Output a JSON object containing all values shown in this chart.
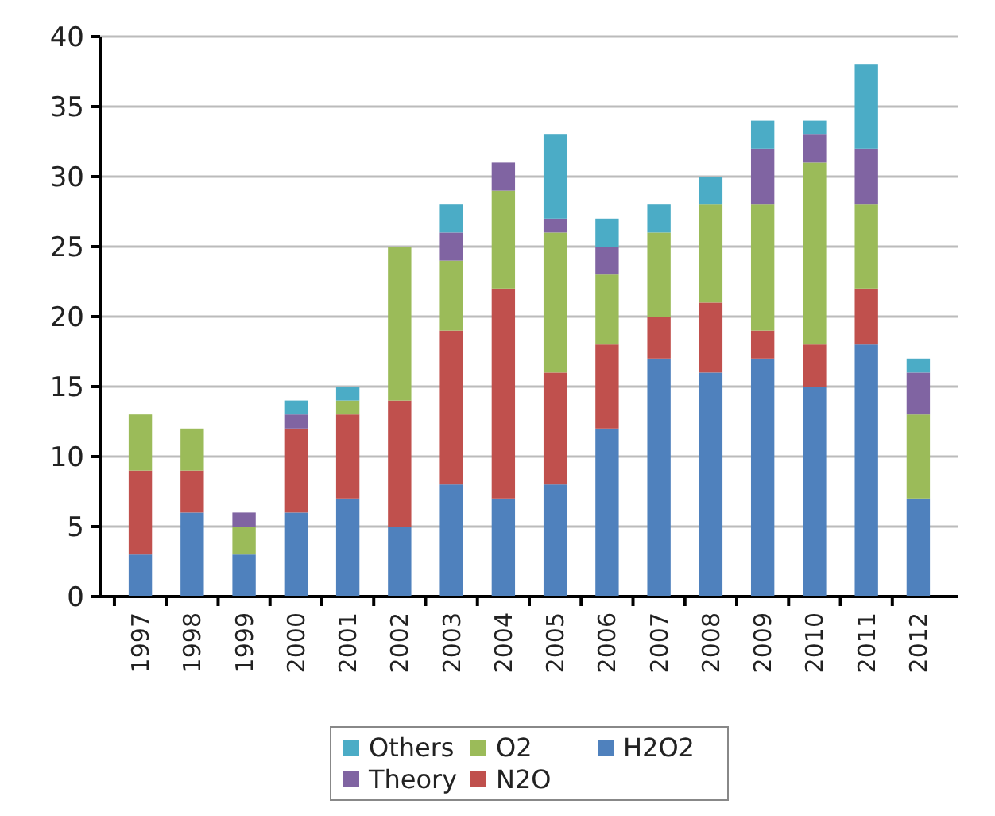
{
  "chart_data": {
    "type": "bar",
    "stacked": true,
    "categories": [
      "1997",
      "1998",
      "1999",
      "2000",
      "2001",
      "2002",
      "2003",
      "2004",
      "2005",
      "2006",
      "2007",
      "2008",
      "2009",
      "2010",
      "2011",
      "2012"
    ],
    "series": [
      {
        "name": "H2O2",
        "color": "#4f81bd",
        "values": [
          3,
          6,
          3,
          6,
          7,
          5,
          8,
          7,
          8,
          12,
          17,
          16,
          17,
          15,
          18,
          7
        ]
      },
      {
        "name": "N2O",
        "color": "#c0504d",
        "values": [
          6,
          3,
          0,
          6,
          6,
          9,
          11,
          15,
          8,
          6,
          3,
          5,
          2,
          3,
          4,
          0
        ]
      },
      {
        "name": "O2",
        "color": "#9bbb59",
        "values": [
          4,
          3,
          2,
          0,
          1,
          11,
          5,
          7,
          10,
          5,
          6,
          7,
          9,
          13,
          6,
          6
        ]
      },
      {
        "name": "Theory",
        "color": "#8064a2",
        "values": [
          0,
          0,
          1,
          1,
          0,
          0,
          2,
          2,
          1,
          2,
          0,
          0,
          4,
          2,
          4,
          3
        ]
      },
      {
        "name": "Others",
        "color": "#4bacc6",
        "values": [
          0,
          0,
          0,
          1,
          1,
          0,
          2,
          0,
          6,
          2,
          2,
          2,
          2,
          1,
          6,
          1
        ]
      }
    ],
    "ylim": [
      0,
      40
    ],
    "yticks": [
      0,
      5,
      10,
      15,
      20,
      25,
      30,
      35,
      40
    ],
    "grid": "y",
    "legend": "bottom"
  }
}
